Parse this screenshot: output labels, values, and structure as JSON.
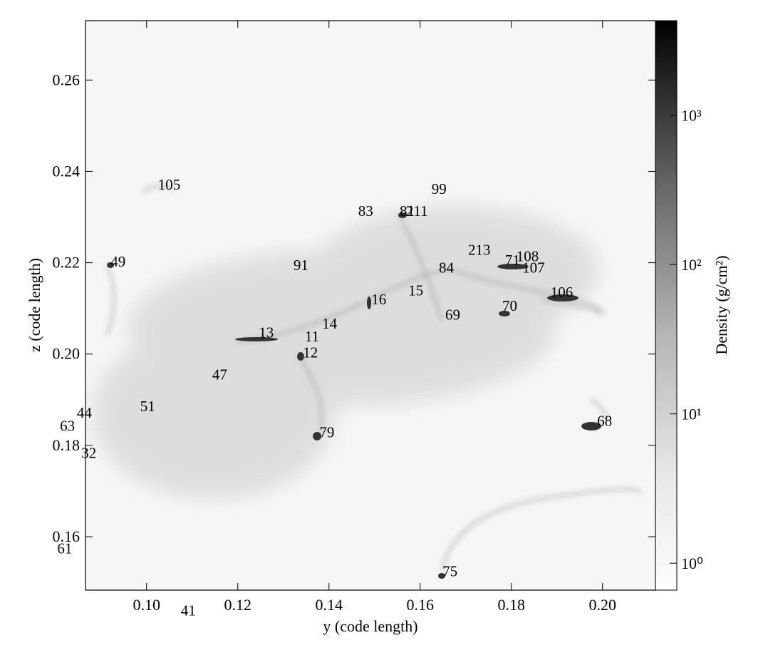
{
  "chart_data": {
    "type": "projection",
    "xlabel": "y  (code length)",
    "ylabel": "z  (code length)",
    "xlim": [
      0.0866,
      0.2116
    ],
    "ylim": [
      0.1483,
      0.273
    ],
    "xticks": [
      {
        "value": 0.1,
        "label": "0.10"
      },
      0.12,
      0.14,
      0.16,
      0.18,
      {
        "value": 0.2,
        "label": "0.20"
      }
    ],
    "yticks": [
      0.16,
      0.18,
      {
        "value": 0.2,
        "label": "0.20"
      },
      0.22,
      0.24,
      0.26
    ],
    "colorbar": {
      "label": "Density  (g/cm²)",
      "log": true,
      "lim": [
        0.66,
        4300
      ],
      "ticks": [
        {
          "value": 1,
          "label": "10⁰"
        },
        {
          "value": 10,
          "label": "10¹"
        },
        {
          "value": 100,
          "label": "10²"
        },
        {
          "value": 1000,
          "label": "10³"
        }
      ]
    },
    "annotations": [
      {
        "text": "105",
        "x": 0.1025,
        "y": 0.2368
      },
      {
        "text": "49",
        "x": 0.0921,
        "y": 0.2199
      },
      {
        "text": "83",
        "x": 0.1464,
        "y": 0.231
      },
      {
        "text": "81",
        "x": 0.1555,
        "y": 0.231
      },
      {
        "text": "211",
        "x": 0.1569,
        "y": 0.231
      },
      {
        "text": "99",
        "x": 0.1625,
        "y": 0.2358
      },
      {
        "text": "91",
        "x": 0.1322,
        "y": 0.2191
      },
      {
        "text": "213",
        "x": 0.1705,
        "y": 0.2225
      },
      {
        "text": "71",
        "x": 0.1786,
        "y": 0.2202
      },
      {
        "text": "108",
        "x": 0.1811,
        "y": 0.2211
      },
      {
        "text": "107",
        "x": 0.1824,
        "y": 0.2186
      },
      {
        "text": "84",
        "x": 0.1641,
        "y": 0.2186
      },
      {
        "text": "15",
        "x": 0.1574,
        "y": 0.2136
      },
      {
        "text": "106",
        "x": 0.1886,
        "y": 0.2132
      },
      {
        "text": "16",
        "x": 0.1493,
        "y": 0.2116
      },
      {
        "text": "70",
        "x": 0.178,
        "y": 0.2102
      },
      {
        "text": "69",
        "x": 0.1655,
        "y": 0.2083
      },
      {
        "text": "14",
        "x": 0.1385,
        "y": 0.2063
      },
      {
        "text": "13",
        "x": 0.1246,
        "y": 0.2044
      },
      {
        "text": "11",
        "x": 0.1347,
        "y": 0.2035
      },
      {
        "text": "12",
        "x": 0.1343,
        "y": 0.2
      },
      {
        "text": "47",
        "x": 0.1144,
        "y": 0.1952
      },
      {
        "text": "51",
        "x": 0.0986,
        "y": 0.1882
      },
      {
        "text": "44",
        "x": 0.0847,
        "y": 0.1868
      },
      {
        "text": "63",
        "x": 0.081,
        "y": 0.1839
      },
      {
        "text": "32",
        "x": 0.0857,
        "y": 0.178
      },
      {
        "text": "79",
        "x": 0.1379,
        "y": 0.1825
      },
      {
        "text": "68",
        "x": 0.1988,
        "y": 0.185
      },
      {
        "text": "61",
        "x": 0.0804,
        "y": 0.1571
      },
      {
        "text": "75",
        "x": 0.1649,
        "y": 0.1521
      },
      {
        "text": "41",
        "x": 0.1075,
        "y": 0.1435
      }
    ]
  }
}
